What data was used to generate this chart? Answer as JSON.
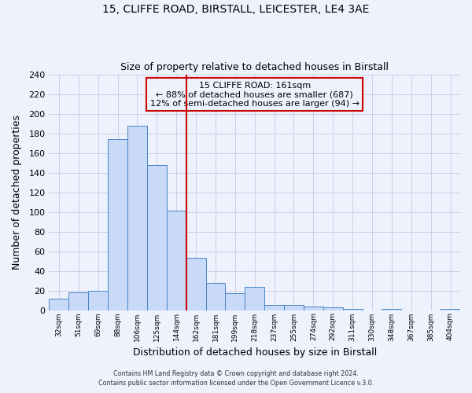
{
  "title": "15, CLIFFE ROAD, BIRSTALL, LEICESTER, LE4 3AE",
  "subtitle": "Size of property relative to detached houses in Birstall",
  "xlabel": "Distribution of detached houses by size in Birstall",
  "ylabel": "Number of detached properties",
  "bar_labels": [
    "32sqm",
    "51sqm",
    "69sqm",
    "88sqm",
    "106sqm",
    "125sqm",
    "144sqm",
    "162sqm",
    "181sqm",
    "199sqm",
    "218sqm",
    "237sqm",
    "255sqm",
    "274sqm",
    "292sqm",
    "311sqm",
    "330sqm",
    "348sqm",
    "367sqm",
    "385sqm",
    "404sqm"
  ],
  "bar_values": [
    12,
    18,
    20,
    174,
    188,
    148,
    101,
    53,
    28,
    17,
    24,
    5,
    5,
    4,
    3,
    1,
    0,
    1,
    0,
    0,
    1
  ],
  "bar_color": "#c9daf8",
  "bar_edge_color": "#4a86c8",
  "vline_color": "#cc0000",
  "annotation_title": "15 CLIFFE ROAD: 161sqm",
  "annotation_line1": "← 88% of detached houses are smaller (687)",
  "annotation_line2": "12% of semi-detached houses are larger (94) →",
  "annotation_box_edge": "#cc0000",
  "ylim": [
    0,
    240
  ],
  "yticks": [
    0,
    20,
    40,
    60,
    80,
    100,
    120,
    140,
    160,
    180,
    200,
    220,
    240
  ],
  "footnote1": "Contains HM Land Registry data © Crown copyright and database right 2024.",
  "footnote2": "Contains public sector information licensed under the Open Government Licence v.3.0.",
  "bg_color": "#eef2fc",
  "grid_color": "#c8d0e8"
}
